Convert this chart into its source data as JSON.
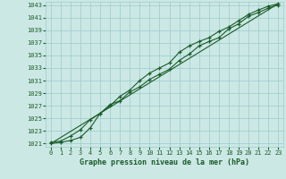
{
  "xlabel": "Graphe pression niveau de la mer (hPa)",
  "bg_color": "#cce8e4",
  "grid_color": "#99cccc",
  "line_color": "#1a5c2a",
  "xlim": [
    -0.5,
    23.5
  ],
  "ylim": [
    1020.5,
    1043.5
  ],
  "yticks": [
    1021,
    1023,
    1025,
    1027,
    1029,
    1031,
    1033,
    1035,
    1037,
    1039,
    1041,
    1043
  ],
  "xticks": [
    0,
    1,
    2,
    3,
    4,
    5,
    6,
    7,
    8,
    9,
    10,
    11,
    12,
    13,
    14,
    15,
    16,
    17,
    18,
    19,
    20,
    21,
    22,
    23
  ],
  "series1_x": [
    0,
    1,
    2,
    3,
    4,
    5,
    6,
    7,
    8,
    9,
    10,
    11,
    12,
    13,
    14,
    15,
    16,
    17,
    18,
    19,
    20,
    21,
    22,
    23
  ],
  "series1_y": [
    1021.2,
    1021.4,
    1022.2,
    1023.2,
    1024.8,
    1025.8,
    1027.2,
    1027.8,
    1029.2,
    1030.0,
    1031.2,
    1032.0,
    1032.8,
    1034.2,
    1035.2,
    1036.5,
    1037.2,
    1037.8,
    1039.2,
    1040.0,
    1041.2,
    1041.8,
    1042.5,
    1043.0
  ],
  "series2_x": [
    0,
    1,
    2,
    3,
    4,
    5,
    6,
    7,
    8,
    9,
    10,
    11,
    12,
    13,
    14,
    15,
    16,
    17,
    18,
    19,
    20,
    21,
    22,
    23
  ],
  "series2_y": [
    1021.0,
    1021.2,
    1021.5,
    1022.0,
    1023.5,
    1025.8,
    1027.0,
    1028.5,
    1029.5,
    1031.0,
    1032.2,
    1033.0,
    1033.8,
    1035.5,
    1036.5,
    1037.2,
    1037.8,
    1038.8,
    1039.5,
    1040.5,
    1041.5,
    1042.2,
    1042.8,
    1043.2
  ],
  "series3_x": [
    0,
    23
  ],
  "series3_y": [
    1021.0,
    1043.2
  ]
}
